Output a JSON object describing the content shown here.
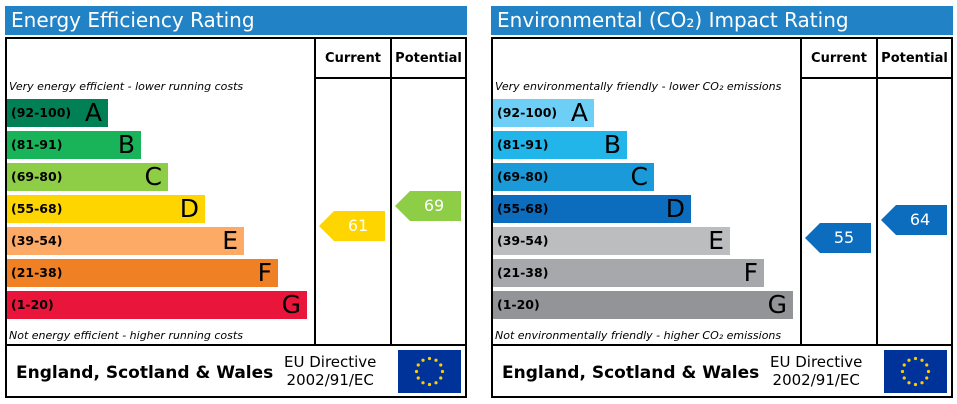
{
  "theme": {
    "title_bg": "#2183c6",
    "arrow_text": "#ffffff",
    "flag_bg": "#003399",
    "flag_stars": "#ffcc00"
  },
  "chart_data": [
    {
      "type": "bar",
      "title": "Energy Efficiency Rating",
      "column_headers": {
        "current": "Current",
        "potential": "Potential"
      },
      "top_note": "Very energy efficient - lower running costs",
      "bottom_note": "Not energy efficient - higher running costs",
      "bands": [
        {
          "range": "(92-100)",
          "letter": "A",
          "color": "#008054",
          "range_color": "#000000"
        },
        {
          "range": "(81-91)",
          "letter": "B",
          "color": "#19b459",
          "range_color": "#000000"
        },
        {
          "range": "(69-80)",
          "letter": "C",
          "color": "#8dce46",
          "range_color": "#000000"
        },
        {
          "range": "(55-68)",
          "letter": "D",
          "color": "#ffd500",
          "range_color": "#000000"
        },
        {
          "range": "(39-54)",
          "letter": "E",
          "color": "#fcaa65",
          "range_color": "#000000"
        },
        {
          "range": "(21-38)",
          "letter": "F",
          "color": "#ef8023",
          "range_color": "#000000"
        },
        {
          "range": "(1-20)",
          "letter": "G",
          "color": "#e9153b",
          "range_color": "#000000"
        }
      ],
      "current": {
        "value": 61,
        "band": "D",
        "color": "#ffd500"
      },
      "potential": {
        "value": 69,
        "band": "C",
        "color": "#8dce46"
      },
      "footer": {
        "region": "England, Scotland & Wales",
        "directive_line1": "EU Directive",
        "directive_line2": "2002/91/EC"
      }
    },
    {
      "type": "bar",
      "title": "Environmental (CO₂) Impact Rating",
      "column_headers": {
        "current": "Current",
        "potential": "Potential"
      },
      "top_note": "Very environmentally friendly - lower CO₂ emissions",
      "bottom_note": "Not environmentally friendly - higher CO₂ emissions",
      "bands": [
        {
          "range": "(92-100)",
          "letter": "A",
          "color": "#6ecff6",
          "range_color": "#000000"
        },
        {
          "range": "(81-91)",
          "letter": "B",
          "color": "#21b5ea",
          "range_color": "#000000"
        },
        {
          "range": "(69-80)",
          "letter": "C",
          "color": "#1a9ad8",
          "range_color": "#000000"
        },
        {
          "range": "(55-68)",
          "letter": "D",
          "color": "#0c6dbf",
          "range_color": "#000000"
        },
        {
          "range": "(39-54)",
          "letter": "E",
          "color": "#bbbdbf",
          "range_color": "#000000"
        },
        {
          "range": "(21-38)",
          "letter": "F",
          "color": "#a6a8ab",
          "range_color": "#000000"
        },
        {
          "range": "(1-20)",
          "letter": "G",
          "color": "#929497",
          "range_color": "#000000"
        }
      ],
      "current": {
        "value": 55,
        "band": "D",
        "color": "#0c6dbf"
      },
      "potential": {
        "value": 64,
        "band": "D",
        "color": "#0c6dbf"
      },
      "footer": {
        "region": "England, Scotland & Wales",
        "directive_line1": "EU Directive",
        "directive_line2": "2002/91/EC"
      }
    }
  ]
}
